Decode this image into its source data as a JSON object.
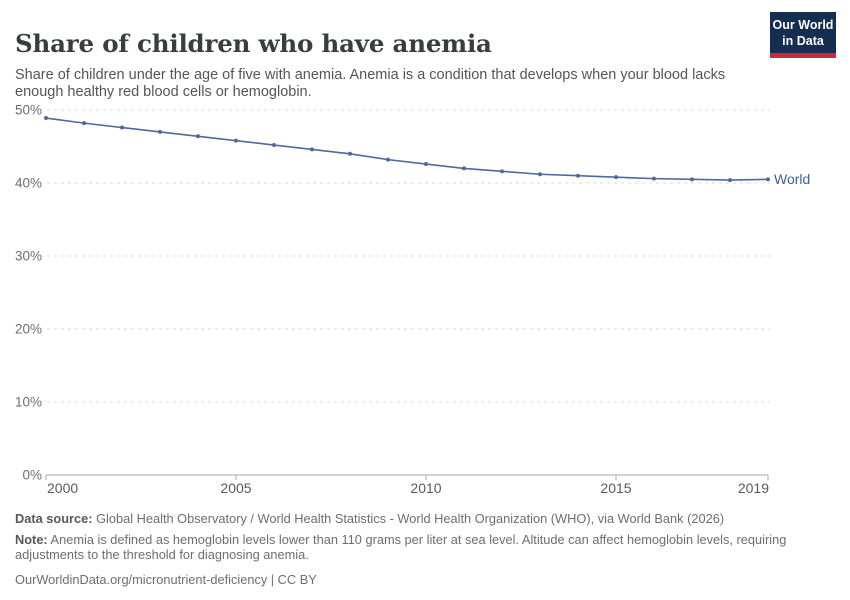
{
  "header": {
    "title": "Share of children who have anemia",
    "subtitle": "Share of children under the age of five with anemia. Anemia is a condition that develops when your blood lacks enough healthy red blood cells or hemoglobin.",
    "logo": {
      "line1": "Our World",
      "line2": "in Data",
      "bg_color": "#152e4f",
      "bar_color": "#c32e40"
    }
  },
  "chart_data": {
    "type": "line",
    "title": "Share of children who have anemia",
    "x": [
      2000,
      2001,
      2002,
      2003,
      2004,
      2005,
      2006,
      2007,
      2008,
      2009,
      2010,
      2011,
      2012,
      2013,
      2014,
      2015,
      2016,
      2017,
      2018,
      2019
    ],
    "series": [
      {
        "name": "World",
        "color": "#4C6A9C",
        "values": [
          48.9,
          48.2,
          47.6,
          47.0,
          46.4,
          45.8,
          45.2,
          44.6,
          44.0,
          43.2,
          42.6,
          42.0,
          41.6,
          41.2,
          41.0,
          40.8,
          40.6,
          40.5,
          40.4,
          40.5
        ]
      }
    ],
    "xlabel": "",
    "ylabel": "",
    "ylim": [
      0,
      50
    ],
    "xlim": [
      2000,
      2019
    ],
    "y_ticks": [
      0,
      10,
      20,
      30,
      40,
      50
    ],
    "y_tick_suffix": "%",
    "x_ticks": [
      2000,
      2005,
      2010,
      2015,
      2019
    ],
    "grid": "horizontal-dashed",
    "legend_position": "end-of-line-label",
    "colors": {
      "gridline": "#d9d9d9",
      "axis": "#a8a8a8",
      "y_tick_label": "#6d6d6d",
      "x_tick_label": "#5a5a5a",
      "series_label": "#3f5e96"
    }
  },
  "footer": {
    "data_source_label": "Data source:",
    "data_source_text": " Global Health Observatory / World Health Statistics - World Health Organization (WHO), via World Bank (2026)",
    "note_label": "Note:",
    "note_text": " Anemia is defined as hemoglobin levels lower than 110 grams per liter at sea level. Altitude can affect hemoglobin levels, requiring adjustments to the threshold for diagnosing anemia.",
    "citation": "OurWorldinData.org/micronutrient-deficiency | CC BY"
  }
}
